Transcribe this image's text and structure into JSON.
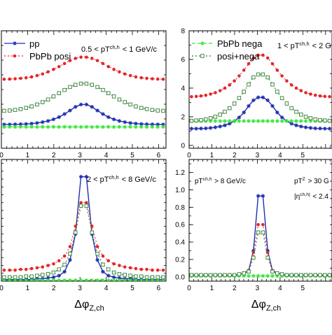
{
  "colors": {
    "pp": "#1f2fb0",
    "posi": "#e3262b",
    "nega": "#39e639",
    "sum": "#2f7d2f"
  },
  "chart_data": [
    {
      "type": "line",
      "panel": "top-left",
      "annotations": [
        "0.5 < pT^ch,h < 1 GeV/c"
      ],
      "legend": [
        "pp",
        "PbPb posi"
      ],
      "legend_position": "top-left",
      "xlim": [
        0,
        6.283
      ],
      "ylim": [
        0,
        8
      ],
      "xticks": [
        "0",
        "1",
        "2",
        "3",
        "4",
        "5",
        "6"
      ],
      "yticks": [],
      "x": [
        0.105,
        0.314,
        0.524,
        0.733,
        0.942,
        1.152,
        1.361,
        1.571,
        1.78,
        1.99,
        2.199,
        2.409,
        2.618,
        2.827,
        3.037,
        3.246,
        3.456,
        3.665,
        3.875,
        4.084,
        4.294,
        4.503,
        4.712,
        4.922,
        5.131,
        5.341,
        5.55,
        5.76,
        5.969,
        6.178
      ],
      "series": [
        {
          "name": "pp",
          "key": "pp",
          "values": [
            1.62,
            1.62,
            1.63,
            1.64,
            1.65,
            1.68,
            1.72,
            1.78,
            1.86,
            1.97,
            2.12,
            2.33,
            2.57,
            2.82,
            2.98,
            2.98,
            2.82,
            2.57,
            2.33,
            2.12,
            1.97,
            1.86,
            1.78,
            1.72,
            1.68,
            1.65,
            1.64,
            1.63,
            1.62,
            1.62
          ]
        },
        {
          "name": "PbPb posi",
          "key": "posi",
          "values": [
            4.7,
            4.71,
            4.73,
            4.76,
            4.8,
            4.86,
            4.95,
            5.06,
            5.2,
            5.37,
            5.56,
            5.77,
            5.97,
            6.12,
            6.2,
            6.2,
            6.12,
            5.97,
            5.77,
            5.56,
            5.37,
            5.2,
            5.06,
            4.95,
            4.86,
            4.8,
            4.76,
            4.73,
            4.71,
            4.7
          ]
        },
        {
          "key": "nega",
          "values": [
            1.45,
            1.46,
            1.45,
            1.46,
            1.45,
            1.46,
            1.45,
            1.46,
            1.45,
            1.46,
            1.45,
            1.46,
            1.45,
            1.46,
            1.45,
            1.46,
            1.45,
            1.46,
            1.45,
            1.46,
            1.45,
            1.46,
            1.45,
            1.46,
            1.45,
            1.46,
            1.45,
            1.46,
            1.45,
            1.46
          ]
        },
        {
          "key": "sum",
          "values": [
            2.55,
            2.57,
            2.61,
            2.67,
            2.75,
            2.85,
            2.98,
            3.14,
            3.32,
            3.53,
            3.75,
            3.97,
            4.17,
            4.32,
            4.4,
            4.4,
            4.32,
            4.17,
            3.97,
            3.75,
            3.53,
            3.32,
            3.14,
            2.98,
            2.85,
            2.75,
            2.67,
            2.61,
            2.57,
            2.55
          ]
        }
      ]
    },
    {
      "type": "line",
      "panel": "top-right",
      "annotations": [
        "1 < pT^ch,h < 2 G"
      ],
      "legend": [
        "PbPb nega",
        "posi+nega"
      ],
      "legend_position": "top-left",
      "xlim": [
        0,
        6.283
      ],
      "ylim": [
        -0.2,
        8
      ],
      "xticks": [
        "0",
        "1",
        "2",
        "3",
        "4",
        "5"
      ],
      "yticks": [
        "0",
        "2",
        "4",
        "6",
        "8"
      ],
      "x": [
        0.105,
        0.314,
        0.524,
        0.733,
        0.942,
        1.152,
        1.361,
        1.571,
        1.78,
        1.99,
        2.199,
        2.409,
        2.618,
        2.827,
        3.037,
        3.246,
        3.456,
        3.665,
        3.875,
        4.084,
        4.294,
        4.503,
        4.712,
        4.922,
        5.131,
        5.341,
        5.55,
        5.76,
        5.969,
        6.178
      ],
      "series": [
        {
          "key": "pp",
          "values": [
            1.17,
            1.17,
            1.18,
            1.19,
            1.22,
            1.26,
            1.32,
            1.4,
            1.52,
            1.7,
            1.95,
            2.3,
            2.75,
            3.15,
            3.35,
            3.35,
            3.15,
            2.75,
            2.3,
            1.95,
            1.7,
            1.52,
            1.4,
            1.32,
            1.26,
            1.22,
            1.19,
            1.18,
            1.17,
            1.17
          ]
        },
        {
          "key": "posi",
          "values": [
            3.4,
            3.42,
            3.45,
            3.5,
            3.58,
            3.68,
            3.82,
            4.0,
            4.22,
            4.5,
            4.85,
            5.25,
            5.7,
            6.1,
            6.3,
            6.3,
            6.1,
            5.7,
            5.25,
            4.85,
            4.5,
            4.22,
            4.0,
            3.82,
            3.68,
            3.58,
            3.5,
            3.45,
            3.42,
            3.4
          ]
        },
        {
          "name": "PbPb nega",
          "key": "nega",
          "values": [
            1.7,
            1.7,
            1.7,
            1.7,
            1.7,
            1.7,
            1.7,
            1.7,
            1.7,
            1.7,
            1.7,
            1.7,
            1.7,
            1.7,
            1.7,
            1.7,
            1.7,
            1.7,
            1.7,
            1.7,
            1.7,
            1.7,
            1.7,
            1.7,
            1.7,
            1.7,
            1.7,
            1.7,
            1.7,
            1.7
          ]
        },
        {
          "name": "posi+nega",
          "key": "sum",
          "values": [
            1.72,
            1.74,
            1.77,
            1.82,
            1.9,
            2.0,
            2.15,
            2.35,
            2.6,
            2.92,
            3.3,
            3.75,
            4.25,
            4.75,
            4.95,
            4.95,
            4.75,
            4.25,
            3.75,
            3.3,
            2.92,
            2.6,
            2.35,
            2.15,
            2.0,
            1.9,
            1.82,
            1.77,
            1.74,
            1.72
          ]
        }
      ]
    },
    {
      "type": "line",
      "panel": "bottom-left",
      "annotations": [
        "2 < pT^ch,h < 8 GeV/c"
      ],
      "xlabel": "Δφ_Z,ch",
      "xlim": [
        0,
        6.283
      ],
      "ylim": [
        0,
        1.55
      ],
      "xticks": [
        "0",
        "1",
        "2",
        "3",
        "4",
        "5",
        "6"
      ],
      "yticks": [],
      "x": [
        0.105,
        0.314,
        0.524,
        0.733,
        0.942,
        1.152,
        1.361,
        1.571,
        1.78,
        1.99,
        2.199,
        2.409,
        2.618,
        2.827,
        3.037,
        3.246,
        3.456,
        3.665,
        3.875,
        4.084,
        4.294,
        4.503,
        4.712,
        4.922,
        5.131,
        5.341,
        5.55,
        5.76,
        5.969,
        6.178
      ],
      "series": [
        {
          "key": "pp",
          "values": [
            0.02,
            0.02,
            0.02,
            0.02,
            0.02,
            0.02,
            0.03,
            0.03,
            0.04,
            0.05,
            0.07,
            0.12,
            0.27,
            0.6,
            1.33,
            1.33,
            0.6,
            0.27,
            0.12,
            0.07,
            0.05,
            0.04,
            0.03,
            0.03,
            0.02,
            0.02,
            0.02,
            0.02,
            0.02,
            0.02
          ]
        },
        {
          "key": "posi",
          "values": [
            0.14,
            0.14,
            0.14,
            0.15,
            0.15,
            0.16,
            0.17,
            0.18,
            0.2,
            0.22,
            0.26,
            0.32,
            0.44,
            0.7,
            1.0,
            1.0,
            0.7,
            0.44,
            0.32,
            0.26,
            0.22,
            0.2,
            0.18,
            0.17,
            0.16,
            0.15,
            0.15,
            0.14,
            0.14,
            0.14
          ]
        },
        {
          "key": "nega",
          "values": [
            0.01,
            0.01,
            0.01,
            0.01,
            0.01,
            0.01,
            0.01,
            0.01,
            0.01,
            0.01,
            0.01,
            0.01,
            0.01,
            0.01,
            0.01,
            0.01,
            0.01,
            0.01,
            0.01,
            0.01,
            0.01,
            0.01,
            0.01,
            0.01,
            0.01,
            0.01,
            0.01,
            0.01,
            0.01,
            0.01
          ]
        },
        {
          "key": "sum",
          "values": [
            0.05,
            0.05,
            0.05,
            0.05,
            0.06,
            0.06,
            0.07,
            0.08,
            0.09,
            0.11,
            0.15,
            0.21,
            0.35,
            0.62,
            0.96,
            0.96,
            0.62,
            0.35,
            0.21,
            0.15,
            0.11,
            0.09,
            0.08,
            0.07,
            0.06,
            0.06,
            0.05,
            0.05,
            0.05,
            0.05
          ]
        }
      ]
    },
    {
      "type": "line",
      "panel": "bottom-right",
      "annotations": [
        "pT^ch,h > 8 GeV/c",
        "pT^Z > 30 G",
        "|η^ch,h| < 2.4"
      ],
      "xlabel": "Δφ_Z,ch",
      "xlim": [
        0,
        6.283
      ],
      "ylim": [
        -0.05,
        1.35
      ],
      "xticks": [
        "0",
        "1",
        "2",
        "3",
        "4",
        "5"
      ],
      "yticks": [
        "0.0",
        "0.2",
        "0.4",
        "0.6",
        "0.8",
        "1.0",
        "1.2"
      ],
      "x": [
        0.105,
        0.314,
        0.524,
        0.733,
        0.942,
        1.152,
        1.361,
        1.571,
        1.78,
        1.99,
        2.199,
        2.409,
        2.618,
        2.827,
        3.037,
        3.246,
        3.456,
        3.665,
        3.875,
        4.084,
        4.294,
        4.503,
        4.712,
        4.922,
        5.131,
        5.341,
        5.55,
        5.76,
        5.969,
        6.178
      ],
      "series": [
        {
          "key": "pp",
          "values": [
            0.02,
            0.02,
            0.02,
            0.02,
            0.02,
            0.02,
            0.02,
            0.02,
            0.02,
            0.02,
            0.03,
            0.04,
            0.07,
            0.3,
            0.93,
            0.93,
            0.3,
            0.07,
            0.04,
            0.03,
            0.02,
            0.02,
            0.02,
            0.02,
            0.02,
            0.02,
            0.02,
            0.02,
            0.02,
            0.02
          ]
        },
        {
          "key": "posi",
          "values": [
            0.02,
            0.02,
            0.02,
            0.02,
            0.02,
            0.02,
            0.02,
            0.02,
            0.02,
            0.02,
            0.03,
            0.04,
            0.07,
            0.28,
            0.6,
            0.6,
            0.28,
            0.07,
            0.04,
            0.03,
            0.02,
            0.02,
            0.02,
            0.02,
            0.02,
            0.02,
            0.02,
            0.02,
            0.02,
            0.02
          ]
        },
        {
          "key": "nega",
          "values": [
            0.01,
            0.01,
            0.01,
            0.01,
            0.01,
            0.01,
            0.01,
            0.01,
            0.01,
            0.01,
            0.01,
            0.01,
            0.01,
            0.01,
            0.01,
            0.01,
            0.01,
            0.01,
            0.01,
            0.01,
            0.01,
            0.01,
            0.01,
            0.01,
            0.01,
            0.01,
            0.01,
            0.01,
            0.01,
            0.01
          ]
        },
        {
          "key": "sum",
          "values": [
            0.02,
            0.02,
            0.02,
            0.02,
            0.02,
            0.02,
            0.02,
            0.02,
            0.02,
            0.02,
            0.03,
            0.04,
            0.06,
            0.22,
            0.51,
            0.51,
            0.22,
            0.06,
            0.04,
            0.03,
            0.02,
            0.02,
            0.02,
            0.02,
            0.02,
            0.02,
            0.02,
            0.02,
            0.02,
            0.02
          ]
        }
      ]
    }
  ]
}
